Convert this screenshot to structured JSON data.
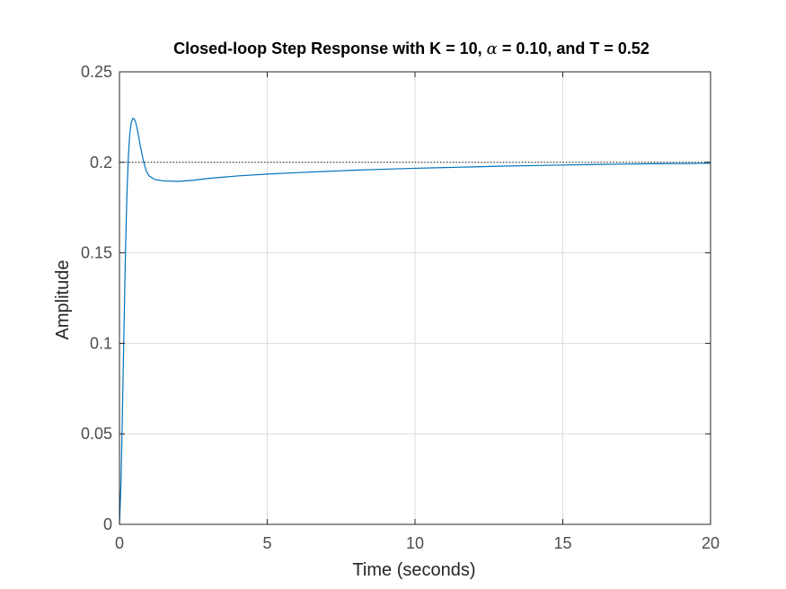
{
  "chart_data": {
    "type": "line",
    "title": {
      "before": "Closed-loop Step Response with K = 10, ",
      "symbol": "α",
      "after": " = 0.10, and T = 0.52"
    },
    "xlabel": "Time (seconds)",
    "ylabel": "Amplitude",
    "xlim": [
      0,
      20
    ],
    "ylim": [
      0,
      0.25
    ],
    "xticks": [
      0,
      5,
      10,
      15,
      20
    ],
    "xtick_labels": [
      "0",
      "5",
      "10",
      "15",
      "20"
    ],
    "yticks": [
      0,
      0.05,
      0.1,
      0.15,
      0.2,
      0.25
    ],
    "ytick_labels": [
      "0",
      "0.05",
      "0.1",
      "0.15",
      "0.2",
      "0.25"
    ],
    "grid": true,
    "series": [
      {
        "values": [
          [
            0,
            0
          ],
          [
            0.05,
            0.022
          ],
          [
            0.1,
            0.062
          ],
          [
            0.15,
            0.105
          ],
          [
            0.2,
            0.148
          ],
          [
            0.25,
            0.181
          ],
          [
            0.3,
            0.203
          ],
          [
            0.35,
            0.216
          ],
          [
            0.4,
            0.222
          ],
          [
            0.45,
            0.2243
          ],
          [
            0.5,
            0.224
          ],
          [
            0.55,
            0.222
          ],
          [
            0.6,
            0.2185
          ],
          [
            0.7,
            0.2095
          ],
          [
            0.8,
            0.2015
          ],
          [
            0.9,
            0.1955
          ],
          [
            1.0,
            0.1925
          ],
          [
            1.2,
            0.1905
          ],
          [
            1.5,
            0.1897
          ],
          [
            2.0,
            0.1895
          ],
          [
            2.5,
            0.1901
          ],
          [
            3,
            0.1911
          ],
          [
            4,
            0.1925
          ],
          [
            5,
            0.1935
          ],
          [
            6,
            0.1943
          ],
          [
            7,
            0.195
          ],
          [
            8,
            0.1957
          ],
          [
            9,
            0.1962
          ],
          [
            10,
            0.1967
          ],
          [
            11,
            0.1971
          ],
          [
            12,
            0.1975
          ],
          [
            13,
            0.1979
          ],
          [
            14,
            0.1982
          ],
          [
            15,
            0.1985
          ],
          [
            16,
            0.1988
          ],
          [
            17,
            0.199
          ],
          [
            18,
            0.1992
          ],
          [
            19,
            0.1993
          ],
          [
            20,
            0.1995
          ]
        ],
        "color": "#0072bd"
      }
    ],
    "reference_line": {
      "y": 0.2,
      "style": "dotted",
      "color": "#000000"
    },
    "colors": {
      "grid": "#dddddd",
      "axes": "#262626",
      "tick_text": "#4d4d4d"
    }
  }
}
